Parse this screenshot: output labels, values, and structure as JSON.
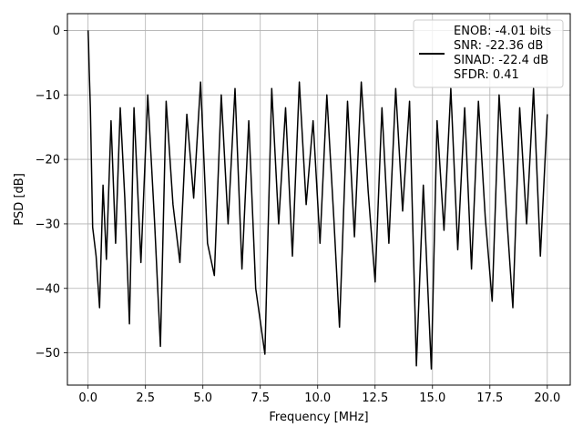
{
  "chart_data": {
    "type": "line",
    "xlabel": "Frequency [MHz]",
    "ylabel": "PSD [dB]",
    "xlim": [
      -0.9,
      21.0
    ],
    "ylim": [
      -55,
      2.6
    ],
    "grid": true,
    "legend_position": "top-right",
    "line_color": "#000000",
    "x_ticks": [
      0.0,
      2.5,
      5.0,
      7.5,
      10.0,
      12.5,
      15.0,
      17.5,
      20.0
    ],
    "x_tick_labels": [
      "0.0",
      "2.5",
      "5.0",
      "7.5",
      "10.0",
      "12.5",
      "15.0",
      "17.5",
      "20.0"
    ],
    "y_ticks": [
      0,
      -10,
      -20,
      -30,
      -40,
      -50
    ],
    "y_tick_labels": [
      "0",
      "−10",
      "−20",
      "−30",
      "−40",
      "−50"
    ],
    "legend": {
      "lines": [
        "ENOB: -4.01 bits",
        "SNR: -22.36 dB",
        "SINAD: -22.4 dB",
        "SFDR: 0.41"
      ]
    },
    "series": [
      {
        "x": [
          0.0,
          0.02,
          0.05,
          0.1,
          0.2,
          0.35,
          0.5,
          0.65,
          0.8,
          1.0,
          1.2,
          1.4,
          1.6,
          1.8,
          2.0,
          2.3,
          2.6,
          2.9,
          3.15,
          3.4,
          3.7,
          4.0,
          4.3,
          4.6,
          4.9,
          5.2,
          5.5,
          5.8,
          6.1,
          6.4,
          6.7,
          7.0,
          7.3,
          7.7,
          8.0,
          8.3,
          8.6,
          8.9,
          9.2,
          9.5,
          9.8,
          10.1,
          10.4,
          10.7,
          10.95,
          11.3,
          11.6,
          11.9,
          12.2,
          12.5,
          12.8,
          13.1,
          13.4,
          13.7,
          14.0,
          14.3,
          14.6,
          14.95,
          15.2,
          15.5,
          15.8,
          16.1,
          16.4,
          16.7,
          17.0,
          17.3,
          17.6,
          17.9,
          18.2,
          18.5,
          18.8,
          19.1,
          19.4,
          19.7,
          20.0
        ],
        "y": [
          0.0,
          -2.0,
          -6.0,
          -12.0,
          -30.5,
          -35.0,
          -43.0,
          -24.0,
          -35.5,
          -14.0,
          -33.0,
          -12.0,
          -26.0,
          -45.5,
          -12.0,
          -36.0,
          -10.0,
          -30.0,
          -49.0,
          -11.0,
          -27.0,
          -36.0,
          -13.0,
          -26.0,
          -8.0,
          -33.0,
          -38.0,
          -10.0,
          -30.0,
          -9.0,
          -37.0,
          -14.0,
          -40.0,
          -50.2,
          -9.0,
          -30.0,
          -12.0,
          -35.0,
          -8.0,
          -27.0,
          -14.0,
          -33.0,
          -10.0,
          -29.0,
          -46.0,
          -11.0,
          -32.0,
          -8.0,
          -25.0,
          -39.0,
          -12.0,
          -33.0,
          -9.0,
          -28.0,
          -11.0,
          -52.0,
          -24.0,
          -52.5,
          -14.0,
          -31.0,
          -9.0,
          -34.0,
          -12.0,
          -37.0,
          -11.0,
          -29.0,
          -42.0,
          -10.0,
          -27.0,
          -43.0,
          -12.0,
          -30.0,
          -9.0,
          -35.0,
          -13.0
        ]
      }
    ]
  }
}
